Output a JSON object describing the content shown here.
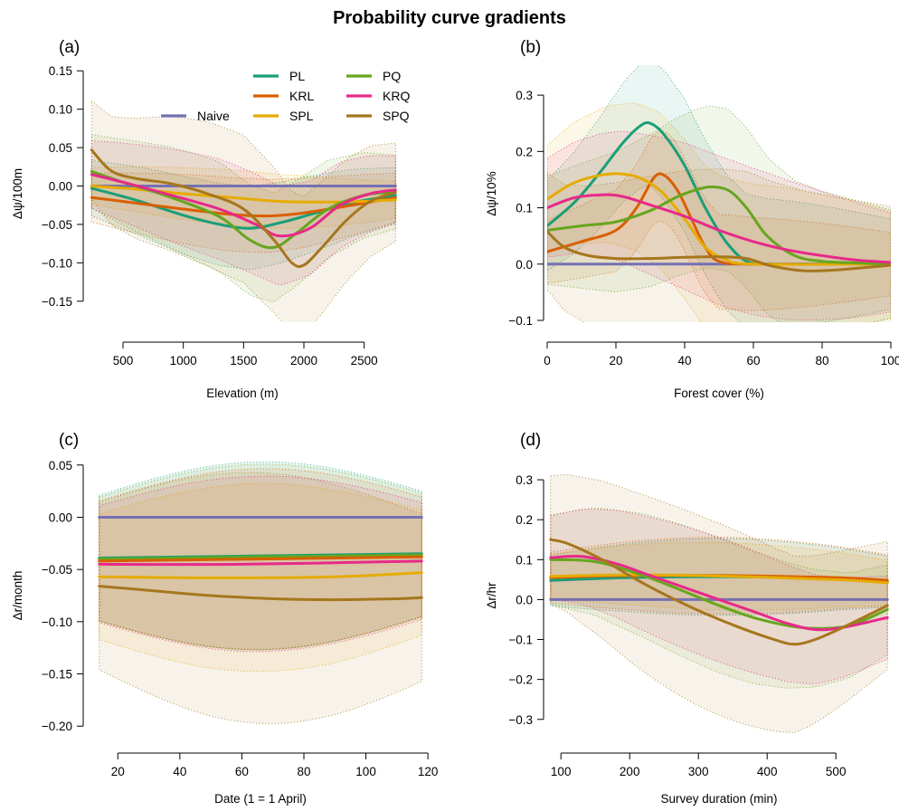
{
  "title": "Probability curve gradients",
  "colors": {
    "Naive": "#7570b3",
    "PL": "#1b9e77",
    "KRL": "#d95f02",
    "SPL": "#e6ab02",
    "PQ": "#66a61e",
    "KRQ": "#e7298a",
    "SPQ": "#a6761d"
  },
  "legend": {
    "placement": "top-right inside panel (a)",
    "entries": [
      "Naive",
      "PL",
      "KRL",
      "SPL",
      "PQ",
      "KRQ",
      "SPQ"
    ]
  },
  "chart_data": [
    {
      "type": "line",
      "panel": "(a)",
      "xlabel": "Elevation (m)",
      "ylabel": "Δψ/100m",
      "xlim": [
        200,
        2780
      ],
      "ylim": [
        -0.175,
        0.155
      ],
      "xticks": [
        500,
        1000,
        1500,
        2000,
        2500
      ],
      "yticks": [
        -0.15,
        -0.1,
        -0.05,
        0.0,
        0.05,
        0.1,
        0.15
      ],
      "xtick_labels": [
        "500",
        "1000",
        "1500",
        "2000",
        "2500"
      ],
      "ytick_labels": [
        "−0.15",
        "−0.10",
        "−0.05",
        "0.00",
        "0.05",
        "0.10",
        "0.15"
      ],
      "x_range": [
        240,
        2760
      ],
      "series": [
        {
          "name": "Naive",
          "x": [
            240,
            2760
          ],
          "y": [
            0,
            0
          ]
        },
        {
          "name": "PL",
          "x": [
            240,
            600,
            1000,
            1300,
            1550,
            1800,
            2100,
            2400,
            2760
          ],
          "y": [
            -0.003,
            -0.018,
            -0.038,
            -0.05,
            -0.055,
            -0.048,
            -0.035,
            -0.022,
            -0.012
          ]
        },
        {
          "name": "KRL",
          "x": [
            240,
            600,
            1000,
            1400,
            1700,
            2000,
            2400,
            2760
          ],
          "y": [
            -0.015,
            -0.022,
            -0.03,
            -0.037,
            -0.039,
            -0.035,
            -0.025,
            -0.015
          ]
        },
        {
          "name": "SPL",
          "x": [
            240,
            600,
            1000,
            1400,
            1800,
            2200,
            2500,
            2760
          ],
          "y": [
            0,
            -0.004,
            -0.01,
            -0.015,
            -0.02,
            -0.021,
            -0.02,
            -0.018
          ]
        },
        {
          "name": "PQ",
          "x": [
            240,
            500,
            900,
            1300,
            1550,
            1750,
            1950,
            2200,
            2500,
            2760
          ],
          "y": [
            0.019,
            0.005,
            -0.015,
            -0.04,
            -0.07,
            -0.08,
            -0.06,
            -0.03,
            -0.012,
            -0.008
          ]
        },
        {
          "name": "KRQ",
          "x": [
            240,
            500,
            900,
            1300,
            1600,
            1800,
            2050,
            2300,
            2550,
            2760
          ],
          "y": [
            0.015,
            0.005,
            -0.012,
            -0.03,
            -0.05,
            -0.065,
            -0.055,
            -0.025,
            -0.01,
            -0.005
          ]
        },
        {
          "name": "SPQ",
          "x": [
            240,
            400,
            600,
            900,
            1200,
            1500,
            1750,
            1900,
            2000,
            2150,
            2350,
            2550,
            2760
          ],
          "y": [
            0.047,
            0.02,
            0.01,
            0.003,
            -0.01,
            -0.03,
            -0.07,
            -0.1,
            -0.103,
            -0.08,
            -0.045,
            -0.02,
            -0.008
          ]
        }
      ]
    },
    {
      "type": "line",
      "panel": "(b)",
      "xlabel": "Forest cover (%)",
      "ylabel": "Δψ/10%",
      "xlim": [
        0,
        100
      ],
      "ylim": [
        -0.1,
        0.35
      ],
      "xticks": [
        0,
        20,
        40,
        60,
        80,
        100
      ],
      "yticks": [
        -0.1,
        0.0,
        0.1,
        0.2,
        0.3
      ],
      "xtick_labels": [
        "0",
        "20",
        "40",
        "60",
        "80",
        "100"
      ],
      "ytick_labels": [
        "−0.1",
        "0.0",
        "0.1",
        "0.2",
        "0.3"
      ],
      "x_range": [
        0,
        100
      ],
      "series": [
        {
          "name": "Naive",
          "x": [
            0,
            100
          ],
          "y": [
            0,
            0
          ]
        },
        {
          "name": "PL",
          "x": [
            0,
            8,
            15,
            22,
            27,
            30,
            34,
            40,
            46,
            52,
            58,
            65,
            75,
            100
          ],
          "y": [
            0.068,
            0.11,
            0.16,
            0.215,
            0.245,
            0.25,
            0.23,
            0.175,
            0.1,
            0.04,
            0.005,
            0.0,
            0.0,
            0.0
          ]
        },
        {
          "name": "KRL",
          "x": [
            0,
            10,
            20,
            26,
            31,
            34,
            38,
            42,
            46,
            50,
            60,
            100
          ],
          "y": [
            0.022,
            0.04,
            0.06,
            0.1,
            0.153,
            0.158,
            0.13,
            0.08,
            0.03,
            0.005,
            0.0,
            0.0
          ]
        },
        {
          "name": "SPL",
          "x": [
            0,
            8,
            18,
            26,
            33,
            40,
            46,
            52,
            60,
            100
          ],
          "y": [
            0.115,
            0.145,
            0.16,
            0.155,
            0.13,
            0.08,
            0.03,
            0.008,
            0.0,
            0.0
          ]
        },
        {
          "name": "PQ",
          "x": [
            0,
            10,
            20,
            30,
            38,
            44,
            48,
            53,
            58,
            64,
            72,
            80,
            90,
            100
          ],
          "y": [
            0.06,
            0.068,
            0.075,
            0.095,
            0.12,
            0.133,
            0.137,
            0.13,
            0.1,
            0.05,
            0.015,
            0.005,
            0.002,
            0.0
          ]
        },
        {
          "name": "KRQ",
          "x": [
            0,
            8,
            16,
            22,
            30,
            40,
            50,
            60,
            70,
            80,
            90,
            100
          ],
          "y": [
            0.1,
            0.118,
            0.123,
            0.12,
            0.105,
            0.085,
            0.06,
            0.04,
            0.025,
            0.015,
            0.007,
            0.003
          ]
        },
        {
          "name": "SPQ",
          "x": [
            0,
            5,
            12,
            20,
            30,
            40,
            50,
            58,
            65,
            75,
            85,
            100
          ],
          "y": [
            0.058,
            0.03,
            0.015,
            0.01,
            0.01,
            0.012,
            0.013,
            0.01,
            -0.003,
            -0.012,
            -0.01,
            -0.002
          ]
        }
      ]
    },
    {
      "type": "line",
      "panel": "(c)",
      "xlabel": "Date (1 = 1 April)",
      "ylabel": "Δr/month",
      "xlim": [
        10,
        122
      ],
      "ylim": [
        -0.205,
        0.055
      ],
      "xticks": [
        20,
        40,
        60,
        80,
        100,
        120
      ],
      "yticks": [
        -0.2,
        -0.15,
        -0.1,
        -0.05,
        0.0,
        0.05
      ],
      "xtick_labels": [
        "20",
        "40",
        "60",
        "80",
        "100",
        "120"
      ],
      "ytick_labels": [
        "−0.20",
        "−0.15",
        "−0.10",
        "−0.05",
        "0.00",
        "0.05"
      ],
      "x_range": [
        14,
        118
      ],
      "series": [
        {
          "name": "Naive",
          "x": [
            14,
            118
          ],
          "y": [
            0,
            0
          ]
        },
        {
          "name": "PL",
          "x": [
            14,
            118
          ],
          "y": [
            -0.039,
            -0.035
          ]
        },
        {
          "name": "PQ",
          "x": [
            14,
            118
          ],
          "y": [
            -0.04,
            -0.036
          ]
        },
        {
          "name": "KRL",
          "x": [
            14,
            118
          ],
          "y": [
            -0.042,
            -0.038
          ]
        },
        {
          "name": "KRQ",
          "x": [
            14,
            60,
            118
          ],
          "y": [
            -0.045,
            -0.045,
            -0.042
          ]
        },
        {
          "name": "SPL",
          "x": [
            14,
            50,
            90,
            118
          ],
          "y": [
            -0.057,
            -0.058,
            -0.057,
            -0.053
          ]
        },
        {
          "name": "SPQ",
          "x": [
            14,
            30,
            50,
            70,
            90,
            110,
            118
          ],
          "y": [
            -0.066,
            -0.07,
            -0.075,
            -0.078,
            -0.079,
            -0.078,
            -0.077
          ]
        }
      ]
    },
    {
      "type": "line",
      "panel": "(d)",
      "xlabel": "Survey duration (min)",
      "ylabel": "Δr/hr",
      "xlim": [
        80,
        580
      ],
      "ylim": [
        -0.33,
        0.35
      ],
      "xticks": [
        100,
        200,
        300,
        400,
        500
      ],
      "yticks": [
        -0.3,
        -0.2,
        -0.1,
        0.0,
        0.1,
        0.2,
        0.3
      ],
      "xtick_labels": [
        "100",
        "200",
        "300",
        "400",
        "500"
      ],
      "ytick_labels": [
        "−0.3",
        "−0.2",
        "−0.1",
        "0.0",
        "0.1",
        "0.2",
        "0.3"
      ],
      "x_range": [
        85,
        575
      ],
      "series": [
        {
          "name": "Naive",
          "x": [
            85,
            575
          ],
          "y": [
            0,
            0
          ]
        },
        {
          "name": "PL",
          "x": [
            85,
            200,
            350,
            500,
            575
          ],
          "y": [
            0.048,
            0.055,
            0.057,
            0.052,
            0.045
          ]
        },
        {
          "name": "KRL",
          "x": [
            85,
            200,
            350,
            500,
            575
          ],
          "y": [
            0.055,
            0.06,
            0.06,
            0.055,
            0.048
          ]
        },
        {
          "name": "SPL",
          "x": [
            85,
            200,
            350,
            500,
            575
          ],
          "y": [
            0.058,
            0.062,
            0.058,
            0.05,
            0.042
          ]
        },
        {
          "name": "PQ",
          "x": [
            85,
            150,
            220,
            280,
            330,
            380,
            430,
            470,
            520,
            575
          ],
          "y": [
            0.1,
            0.095,
            0.06,
            0.02,
            -0.015,
            -0.045,
            -0.065,
            -0.072,
            -0.065,
            -0.025
          ]
        },
        {
          "name": "KRQ",
          "x": [
            85,
            130,
            180,
            230,
            280,
            330,
            380,
            430,
            470,
            510,
            575
          ],
          "y": [
            0.105,
            0.108,
            0.09,
            0.06,
            0.03,
            0.0,
            -0.03,
            -0.06,
            -0.075,
            -0.07,
            -0.045
          ]
        },
        {
          "name": "SPQ",
          "x": [
            85,
            110,
            160,
            210,
            260,
            310,
            360,
            410,
            440,
            470,
            510,
            575
          ],
          "y": [
            0.15,
            0.14,
            0.1,
            0.05,
            0.005,
            -0.035,
            -0.07,
            -0.1,
            -0.112,
            -0.1,
            -0.07,
            -0.015
          ]
        }
      ]
    }
  ]
}
